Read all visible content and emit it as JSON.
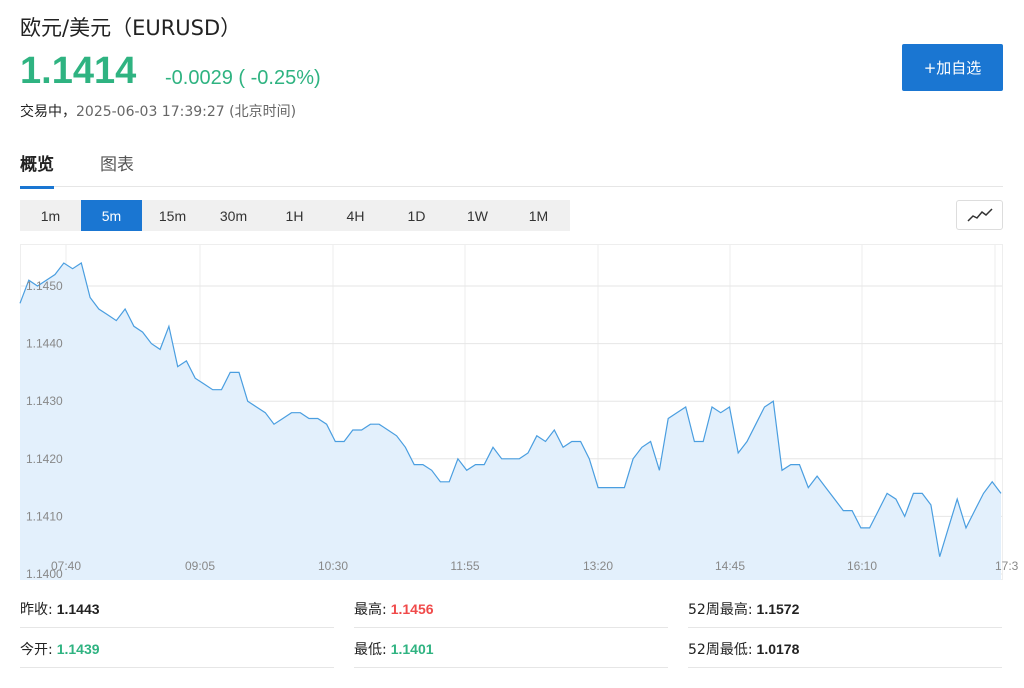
{
  "header": {
    "title": "欧元/美元（EURUSD）",
    "price": "1.1414",
    "change": "-0.0029 ( -0.25%)",
    "status_label": "交易中，",
    "timestamp": "2025-06-03 17:39:27 (北京时间)",
    "add_button": "+加自选"
  },
  "tabs": [
    {
      "label": "概览",
      "active": true
    },
    {
      "label": "图表",
      "active": false
    }
  ],
  "periods": [
    "1m",
    "5m",
    "15m",
    "30m",
    "1H",
    "4H",
    "1D",
    "1W",
    "1M"
  ],
  "active_period": "5m",
  "icons": {
    "chart_type": "line-chart-icon"
  },
  "colors": {
    "accent": "#1a76d2",
    "line": "#4a9ee0",
    "fill": "#e3f0fc",
    "down": "#2fb381",
    "up": "#f04a4a"
  },
  "chart_data": {
    "type": "area",
    "y_ticks": [
      "1.1400",
      "1.1410",
      "1.1420",
      "1.1430",
      "1.1440",
      "1.1450"
    ],
    "x_ticks": [
      "07:40",
      "09:05",
      "10:30",
      "11:55",
      "13:20",
      "14:45",
      "16:10",
      "17:3"
    ],
    "ylim": [
      1.14,
      1.1455
    ],
    "grid": true,
    "values": [
      1.1447,
      1.1451,
      1.145,
      1.1451,
      1.1452,
      1.1454,
      1.1453,
      1.1454,
      1.1448,
      1.1446,
      1.1445,
      1.1444,
      1.1446,
      1.1443,
      1.1442,
      1.144,
      1.1439,
      1.1443,
      1.1436,
      1.1437,
      1.1434,
      1.1433,
      1.1432,
      1.1432,
      1.1435,
      1.1435,
      1.143,
      1.1429,
      1.1428,
      1.1426,
      1.1427,
      1.1428,
      1.1428,
      1.1427,
      1.1427,
      1.1426,
      1.1423,
      1.1423,
      1.1425,
      1.1425,
      1.1426,
      1.1426,
      1.1425,
      1.1424,
      1.1422,
      1.1419,
      1.1419,
      1.1418,
      1.1416,
      1.1416,
      1.142,
      1.1418,
      1.1419,
      1.1419,
      1.1422,
      1.142,
      1.142,
      1.142,
      1.1421,
      1.1424,
      1.1423,
      1.1425,
      1.1422,
      1.1423,
      1.1423,
      1.142,
      1.1415,
      1.1415,
      1.1415,
      1.1415,
      1.142,
      1.1422,
      1.1423,
      1.1418,
      1.1427,
      1.1428,
      1.1429,
      1.1423,
      1.1423,
      1.1429,
      1.1428,
      1.1429,
      1.1421,
      1.1423,
      1.1426,
      1.1429,
      1.143,
      1.1418,
      1.1419,
      1.1419,
      1.1415,
      1.1417,
      1.1415,
      1.1413,
      1.1411,
      1.1411,
      1.1408,
      1.1408,
      1.1411,
      1.1414,
      1.1413,
      1.141,
      1.1414,
      1.1414,
      1.1412,
      1.1403,
      1.1408,
      1.1413,
      1.1408,
      1.1411,
      1.1414,
      1.1416,
      1.1414
    ]
  },
  "stats": [
    {
      "label": "昨收:",
      "value": "1.1443",
      "tone": "neutral"
    },
    {
      "label": "最高:",
      "value": "1.1456",
      "tone": "up"
    },
    {
      "label": "52周最高:",
      "value": "1.1572",
      "tone": "neutral"
    },
    {
      "label": "今开:",
      "value": "1.1439",
      "tone": "down"
    },
    {
      "label": "最低:",
      "value": "1.1401",
      "tone": "down"
    },
    {
      "label": "52周最低:",
      "value": "1.0178",
      "tone": "neutral"
    }
  ]
}
